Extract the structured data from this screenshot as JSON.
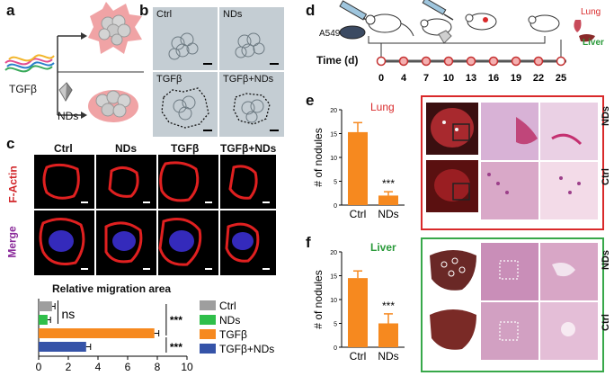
{
  "panels": {
    "a": {
      "letter": "a",
      "treatment_labels": [
        "TGFβ",
        "NDs"
      ]
    },
    "b": {
      "letter": "b",
      "labels": [
        "Ctrl",
        "NDs",
        "TGFβ",
        "TGFβ+NDs"
      ]
    },
    "c": {
      "letter": "c",
      "col_labels": [
        "Ctrl",
        "NDs",
        "TGFβ",
        "TGFβ+NDs"
      ],
      "row_labels": [
        "F-Actin",
        "Merge"
      ],
      "chart_title": "Relative migration area"
    },
    "d": {
      "letter": "d",
      "cell_label": "A549",
      "organ_labels": [
        "Lung",
        "Liver"
      ],
      "timeline_label": "Time (d)",
      "days": [
        "0",
        "4",
        "7",
        "10",
        "13",
        "16",
        "19",
        "22",
        "25"
      ]
    },
    "e": {
      "letter": "e",
      "organ_title": "Lung",
      "row_labels": [
        "NDs",
        "Ctrl"
      ]
    },
    "f": {
      "letter": "f",
      "organ_title": "Liver",
      "row_labels": [
        "NDs",
        "Ctrl"
      ]
    }
  },
  "colors": {
    "ctrl": "#9e9e9e",
    "nds": "#2fbf4a",
    "tgfb": "#f6891f",
    "tgfb_nds": "#3553a8",
    "lung_frame": "#d9292a",
    "liver_frame": "#38a84a",
    "lung_title": "#d9292a",
    "liver_title": "#2a9a3a"
  },
  "chart_data": [
    {
      "id": "c",
      "type": "bar",
      "orientation": "horizontal",
      "title": "Relative migration area",
      "categories": [
        "Ctrl",
        "NDs",
        "TGFβ",
        "TGFβ+NDs"
      ],
      "values": [
        0.9,
        0.6,
        7.8,
        3.2
      ],
      "errors": [
        0.2,
        0.2,
        0.3,
        0.3
      ],
      "xlim": [
        0,
        10
      ],
      "xticks": [
        "0",
        "2",
        "4",
        "6",
        "8",
        "10"
      ],
      "legend": [
        "Ctrl",
        "NDs",
        "TGFβ",
        "TGFβ+NDs"
      ],
      "annotations": [
        "ns",
        "***",
        "***"
      ]
    },
    {
      "id": "e",
      "type": "bar",
      "title": "Lung",
      "categories": [
        "Ctrl",
        "NDs"
      ],
      "values": [
        15.3,
        2.0
      ],
      "errors": [
        2.0,
        0.8
      ],
      "ylabel": "# of nodules",
      "ylim": [
        0,
        20
      ],
      "yticks": [
        "0",
        "5",
        "10",
        "15",
        "20"
      ],
      "annotations": [
        "***"
      ]
    },
    {
      "id": "f",
      "type": "bar",
      "title": "Liver",
      "categories": [
        "Ctrl",
        "NDs"
      ],
      "values": [
        14.5,
        5.0
      ],
      "errors": [
        1.5,
        2.0
      ],
      "ylabel": "# of nodules",
      "ylim": [
        0,
        20
      ],
      "yticks": [
        "0",
        "5",
        "10",
        "15",
        "20"
      ],
      "annotations": [
        "***"
      ]
    }
  ]
}
